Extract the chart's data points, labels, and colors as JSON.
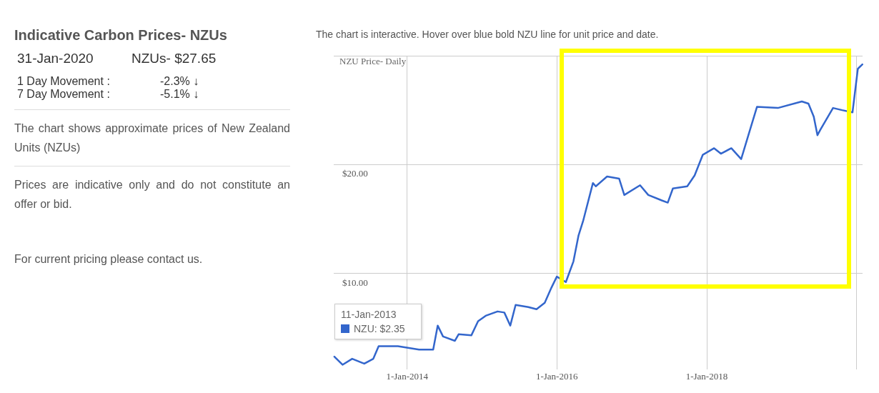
{
  "chart_data": {
    "type": "line",
    "title": "NZU Price- Daily",
    "subtitle": "The chart is interactive. Hover over blue bold NZU line for unit price and date.",
    "x": [
      "2013-01-11",
      "2013-02-20",
      "2013-04-08",
      "2013-06-06",
      "2013-07-20",
      "2013-08-15",
      "2013-11-17",
      "2014-02-28",
      "2014-05-08",
      "2014-05-30",
      "2014-06-25",
      "2014-08-22",
      "2014-09-09",
      "2014-11-10",
      "2014-12-13",
      "2015-01-19",
      "2015-03-18",
      "2015-04-20",
      "2015-05-19",
      "2015-06-14",
      "2015-08-15",
      "2015-09-24",
      "2015-11-03",
      "2015-12-06",
      "2016-01-01",
      "2016-02-14",
      "2016-03-22",
      "2016-04-16",
      "2016-05-08",
      "2016-06-25",
      "2016-07-09",
      "2016-09-02",
      "2016-10-31",
      "2016-11-25",
      "2017-02-10",
      "2017-03-22",
      "2017-05-27",
      "2017-06-25",
      "2017-07-20",
      "2017-09-28",
      "2017-11-03",
      "2017-12-13",
      "2018-02-06",
      "2018-03-11",
      "2018-05-01",
      "2018-06-18",
      "2018-07-28",
      "2018-09-03",
      "2018-12-14",
      "2019-04-10",
      "2019-05-12",
      "2019-06-07",
      "2019-06-25",
      "2019-07-09",
      "2019-09-09",
      "2019-10-23",
      "2019-12-13",
      "2020-01-08",
      "2020-01-30"
    ],
    "series": [
      {
        "color": "#3366cc",
        "values": [
          2.35,
          1.6,
          2.15,
          1.7,
          2.15,
          3.3,
          3.3,
          3.0,
          3.0,
          5.2,
          4.2,
          3.8,
          4.4,
          4.3,
          5.6,
          6.1,
          6.5,
          6.4,
          5.2,
          7.1,
          6.9,
          6.7,
          7.3,
          8.7,
          9.7,
          9.2,
          11.1,
          13.5,
          14.8,
          18.3,
          18.0,
          18.9,
          18.7,
          17.2,
          18.1,
          17.2,
          16.7,
          16.5,
          17.8,
          18.0,
          19.0,
          20.9,
          21.5,
          21.0,
          21.5,
          20.5,
          23.0,
          25.3,
          25.2,
          25.8,
          25.6,
          24.4,
          22.7,
          23.2,
          25.2,
          25.0,
          24.8,
          28.8,
          29.2
        ]
      }
    ],
    "xlim": [
      "2013-01-08",
      "2020-01-31"
    ],
    "xticks": [
      {
        "value": "2014-01-01",
        "label": "1-Jan-2014"
      },
      {
        "value": "2016-01-01",
        "label": "1-Jan-2016"
      },
      {
        "value": "2018-01-01",
        "label": "1-Jan-2018"
      },
      {
        "value": "2020-01-01",
        "label": null
      }
    ],
    "ylim": [
      1.5,
      30
    ],
    "yticks": [
      {
        "value": 10,
        "label": "$10.00"
      },
      {
        "value": 20,
        "label": "$20.00"
      },
      {
        "value": 30,
        "label": null
      }
    ],
    "grid": true,
    "marker": "none",
    "line_style": "solid",
    "annotations": [
      "Indicative Carbon Prices- NZUs",
      "31-Jan-2020",
      "NZUs- $27.65",
      "1 Day Movement :",
      "-2.3% ↓",
      "7 Day Movement :",
      "-5.1% ↓",
      "The chart shows approximate prices of New Zealand Units (NZUs)",
      "Prices are indicative only and do not constitute an offer or bid.",
      "For current pricing please contact us.",
      "11-Jan-2013",
      "NZU: $2.35"
    ]
  }
}
